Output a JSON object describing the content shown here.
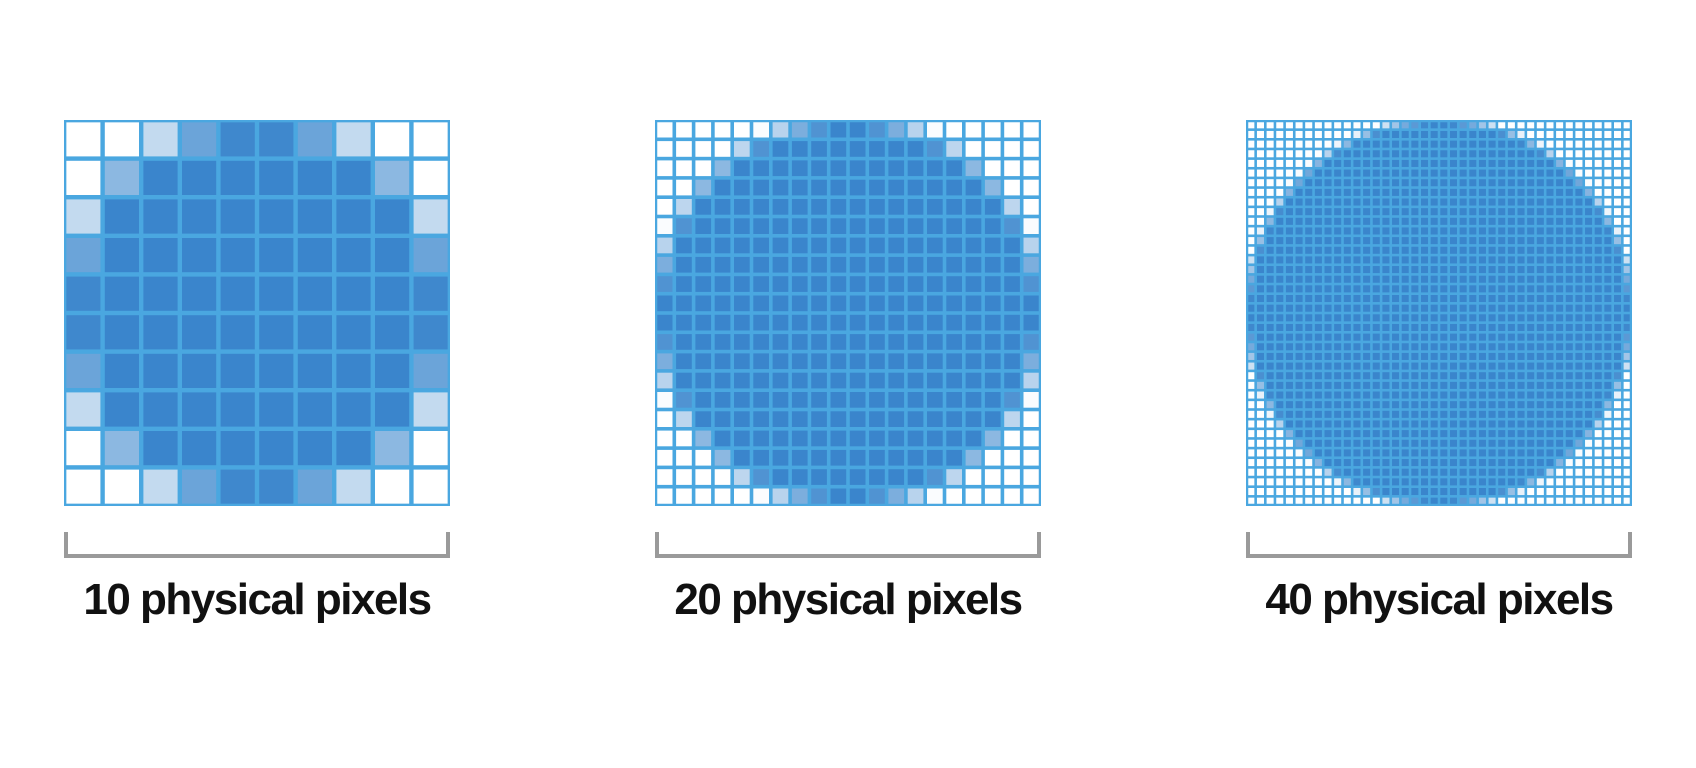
{
  "colors": {
    "grid_line": "#4aa7e0",
    "full": "#3a85cc",
    "empty": "#ffffff",
    "bracket": "#9a9a9a",
    "caption": "#111111"
  },
  "panels": [
    {
      "resolution": 10,
      "caption": "10 physical pixels"
    },
    {
      "resolution": 20,
      "caption": "20 physical pixels"
    },
    {
      "resolution": 40,
      "caption": "40 physical pixels"
    }
  ]
}
